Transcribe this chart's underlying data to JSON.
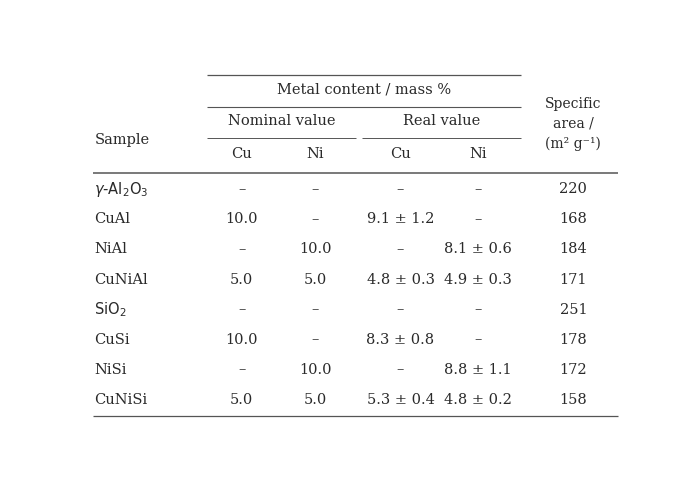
{
  "row_samples": [
    "γ-Al₂O₃",
    "CuAl",
    "NiAl",
    "CuNiAl",
    "SiO₂",
    "CuSi",
    "NiSi",
    "CuNiSi"
  ],
  "row_data": [
    [
      "–",
      "–",
      "–",
      "–",
      "220"
    ],
    [
      "10.0",
      "–",
      "9.1 ± 1.2",
      "–",
      "168"
    ],
    [
      "–",
      "10.0",
      "–",
      "8.1 ± 0.6",
      "184"
    ],
    [
      "5.0",
      "5.0",
      "4.8 ± 0.3",
      "4.9 ± 0.3",
      "171"
    ],
    [
      "–",
      "–",
      "–",
      "–",
      "251"
    ],
    [
      "10.0",
      "–",
      "8.3 ± 0.8",
      "–",
      "178"
    ],
    [
      "–",
      "10.0",
      "–",
      "8.8 ± 1.1",
      "172"
    ],
    [
      "5.0",
      "5.0",
      "5.3 ± 0.4",
      "4.8 ± 0.2",
      "158"
    ]
  ],
  "sample_math": {
    "γ-Al₂O₃": "$\\gamma$-Al$_2$O$_3$",
    "SiO₂": "SiO$_2$"
  },
  "bg_color": "#ffffff",
  "text_color": "#2a2a2a",
  "line_color": "#555555",
  "font_size": 10.5
}
